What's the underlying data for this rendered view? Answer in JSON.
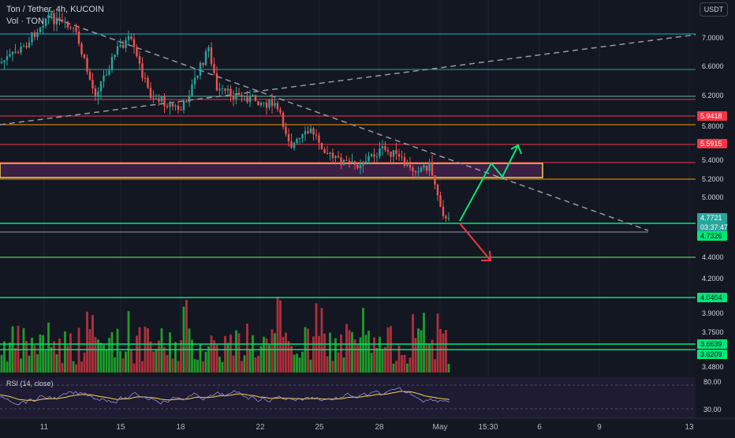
{
  "header": {
    "symbol_title": "Ton / Tether, 4h, KUCOIN",
    "volume_label": "Vol · TON"
  },
  "currency_button": "USDT",
  "rsi_label": "RSI (14, close)",
  "colors": {
    "background": "#131722",
    "bull": "#26a69a",
    "bear": "#ef5350",
    "vol_bull": "#1e9e2a",
    "vol_bear": "#b0303b"
  },
  "chart_data": {
    "type": "candlestick",
    "price_axis_ticks": [
      "7.0000",
      "6.6000",
      "6.2000",
      "5.8000",
      "5.4000",
      "5.2000",
      "5.0000",
      "4.4000",
      "4.2000",
      "3.9000",
      "3.7500",
      "3.4800"
    ],
    "rsi_axis_ticks": [
      "80.00",
      "30.00"
    ],
    "date_ticks": [
      "11",
      "15",
      "18",
      "22",
      "25",
      "28",
      "May",
      "15:30",
      "6",
      "9",
      "13"
    ],
    "price_badges": [
      {
        "value": "5.9418",
        "color": "#f23645"
      },
      {
        "value": "5.5915",
        "color": "#f23645"
      },
      {
        "value": "4.7721",
        "color": "#26a69a"
      },
      {
        "value": "03:37:47",
        "color": "#26a69a"
      },
      {
        "value": "4.7326",
        "color": "#00e676"
      },
      {
        "value": "4.0404",
        "color": "#00e676"
      },
      {
        "value": "3.6639",
        "color": "#00e676"
      },
      {
        "value": "3.6209",
        "color": "#00e676"
      }
    ],
    "horizontal_levels": [
      {
        "label": "cyan-top",
        "color": "#00bcd4"
      },
      {
        "label": "teal-6.55",
        "color": "#26a69a"
      },
      {
        "label": "teal-6.2",
        "color": "#5cb8a6"
      },
      {
        "label": "red-6.15",
        "color": "#f23645"
      },
      {
        "label": "red-5.94",
        "color": "#f23645"
      },
      {
        "label": "orange-5.84",
        "color": "#ff9800"
      },
      {
        "label": "red-5.59",
        "color": "#f23645"
      },
      {
        "label": "red-5.37",
        "color": "#f23645"
      },
      {
        "label": "orange-5.19",
        "color": "#ff9800"
      },
      {
        "label": "green-4.77",
        "color": "#00e676"
      },
      {
        "label": "gray-4.73",
        "color": "#9598a1"
      },
      {
        "label": "green-4.40",
        "color": "#4caf50"
      },
      {
        "label": "green-4.04",
        "color": "#00e676"
      },
      {
        "label": "green-3.66",
        "color": "#00e676"
      },
      {
        "label": "green-3.62",
        "color": "#00e676"
      }
    ]
  }
}
